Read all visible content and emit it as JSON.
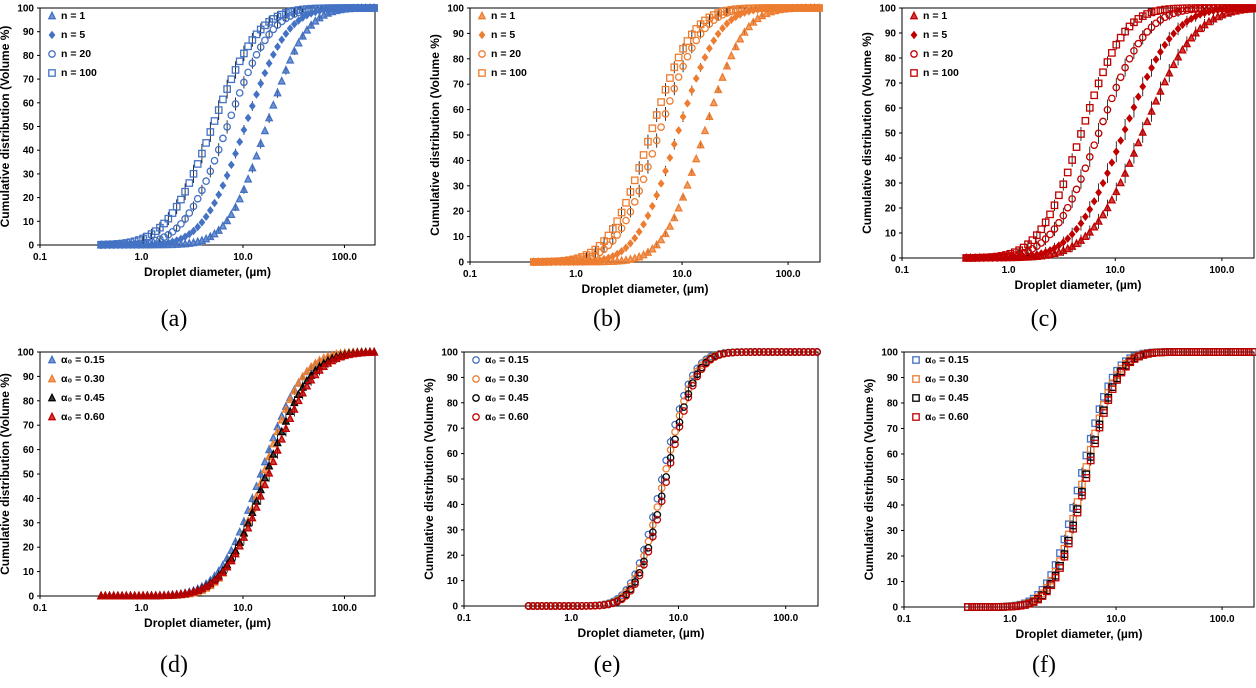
{
  "colors": {
    "blue": "#4472C4",
    "orange": "#ED7D31",
    "red": "#C00000",
    "black": "#000000"
  },
  "chart_data": [
    {
      "type": "scatter",
      "caption": "(a)",
      "xlabel": "Droplet diameter, (µm)",
      "ylabel": "Cumulative distribution (Volume %)",
      "xscale": "log",
      "xlim": [
        0.1,
        200
      ],
      "ylim": [
        0,
        100
      ],
      "legend_position": "top-left",
      "x_ticks": [
        "0.1",
        "1.0",
        "10.0",
        "100.0"
      ],
      "y_ticks": [
        "0",
        "10",
        "20",
        "30",
        "40",
        "50",
        "60",
        "70",
        "80",
        "90",
        "100"
      ],
      "series": [
        {
          "name": "n = 1",
          "marker": "triangle",
          "color": "#4472C4",
          "d50": 17,
          "s": 0.7,
          "err": 1.5
        },
        {
          "name": "n = 5",
          "marker": "diamond",
          "color": "#4472C4",
          "d50": 10.5,
          "s": 0.75,
          "err": 1.5
        },
        {
          "name": "n = 20",
          "marker": "circle",
          "color": "#4472C4",
          "d50": 7,
          "s": 0.78,
          "err": 2
        },
        {
          "name": "n = 100",
          "marker": "square",
          "color": "#4472C4",
          "d50": 5,
          "s": 0.82,
          "err": 3
        }
      ]
    },
    {
      "type": "scatter",
      "caption": "(b)",
      "xlabel": "Droplet diameter, (µm)",
      "ylabel": "Cumulative distribution (Volume %)",
      "xscale": "log",
      "xlim": [
        0.1,
        200
      ],
      "ylim": [
        0,
        100
      ],
      "legend_position": "top-left",
      "x_ticks": [
        "0.1",
        "1.0",
        "10.0",
        "100.0"
      ],
      "y_ticks": [
        "0",
        "10",
        "20",
        "30",
        "40",
        "50",
        "60",
        "70",
        "80",
        "90",
        "100"
      ],
      "series": [
        {
          "name": "n = 1",
          "marker": "triangle",
          "color": "#ED7D31",
          "d50": 16,
          "s": 0.68,
          "err": 1
        },
        {
          "name": "n = 5",
          "marker": "diamond",
          "color": "#ED7D31",
          "d50": 9,
          "s": 0.7,
          "err": 1.5
        },
        {
          "name": "n = 20",
          "marker": "circle",
          "color": "#ED7D31",
          "d50": 6,
          "s": 0.72,
          "err": 2
        },
        {
          "name": "n = 100",
          "marker": "square",
          "color": "#ED7D31",
          "d50": 5,
          "s": 0.72,
          "err": 2
        }
      ]
    },
    {
      "type": "scatter",
      "caption": "(c)",
      "xlabel": "Droplet diameter, (µm)",
      "ylabel": "Cumulative distribution (Volume %)",
      "xscale": "log",
      "xlim": [
        0.1,
        200
      ],
      "ylim": [
        0,
        100
      ],
      "legend_position": "top-left",
      "x_ticks": [
        "0.1",
        "1.0",
        "10.0",
        "100.0"
      ],
      "y_ticks": [
        "0",
        "10",
        "20",
        "30",
        "40",
        "50",
        "60",
        "70",
        "80",
        "90",
        "100"
      ],
      "series": [
        {
          "name": "n = 1",
          "marker": "triangle",
          "color": "#C00000",
          "d50": 18,
          "s": 0.9,
          "err": 3
        },
        {
          "name": "n = 5",
          "marker": "diamond",
          "color": "#C00000",
          "d50": 12,
          "s": 0.85,
          "err": 3
        },
        {
          "name": "n = 20",
          "marker": "circle",
          "color": "#C00000",
          "d50": 7,
          "s": 0.8,
          "err": 3
        },
        {
          "name": "n = 100",
          "marker": "square",
          "color": "#C00000",
          "d50": 4.8,
          "s": 0.72,
          "err": 2
        }
      ]
    },
    {
      "type": "scatter",
      "caption": "(d)",
      "xlabel": "Droplet diameter, (µm)",
      "ylabel": "Cumulative distribution (Volume %)",
      "xscale": "log",
      "xlim": [
        0.1,
        200
      ],
      "ylim": [
        0,
        100
      ],
      "legend_position": "top-left",
      "x_ticks": [
        "0.1",
        "1.0",
        "10.0",
        "100.0"
      ],
      "y_ticks": [
        "0",
        "10",
        "20",
        "30",
        "40",
        "50",
        "60",
        "70",
        "80",
        "90",
        "100"
      ],
      "series": [
        {
          "name": "α₀ = 0.15",
          "marker": "triangle",
          "color": "#4472C4",
          "d50": 15,
          "s": 0.75,
          "err": 1.5
        },
        {
          "name": "α₀ = 0.30",
          "marker": "triangle",
          "color": "#ED7D31",
          "d50": 16,
          "s": 0.7,
          "err": 1.5
        },
        {
          "name": "α₀ = 0.45",
          "marker": "triangle",
          "color": "#000000",
          "d50": 17,
          "s": 0.78,
          "err": 2.5
        },
        {
          "name": "α₀ = 0.60",
          "marker": "triangle",
          "color": "#C00000",
          "d50": 18,
          "s": 0.8,
          "err": 2.5
        }
      ]
    },
    {
      "type": "scatter",
      "caption": "(e)",
      "xlabel": "Droplet diameter, (µm)",
      "ylabel": "Cumulative distribution (Volume %)",
      "xscale": "log",
      "xlim": [
        0.1,
        200
      ],
      "ylim": [
        0,
        100
      ],
      "legend_position": "top-left",
      "x_ticks": [
        "0.1",
        "1.0",
        "10.0",
        "100.0"
      ],
      "y_ticks": [
        "0",
        "10",
        "20",
        "30",
        "40",
        "50",
        "60",
        "70",
        "80",
        "90",
        "100"
      ],
      "series": [
        {
          "name": "α₀ = 0.15",
          "marker": "circle",
          "color": "#4472C4",
          "d50": 7.0,
          "s": 0.5,
          "err": 1.5
        },
        {
          "name": "α₀ = 0.30",
          "marker": "circle",
          "color": "#ED7D31",
          "d50": 7.3,
          "s": 0.5,
          "err": 1.5
        },
        {
          "name": "α₀ = 0.45",
          "marker": "circle",
          "color": "#000000",
          "d50": 7.6,
          "s": 0.5,
          "err": 1.5
        },
        {
          "name": "α₀ = 0.60",
          "marker": "circle",
          "color": "#C00000",
          "d50": 7.8,
          "s": 0.5,
          "err": 1.5
        }
      ]
    },
    {
      "type": "scatter",
      "caption": "(f)",
      "xlabel": "Droplet diameter, (µm)",
      "ylabel": "Cumulative distribution (Volume %)",
      "xscale": "log",
      "xlim": [
        0.1,
        200
      ],
      "ylim": [
        0,
        100
      ],
      "legend_position": "top-left",
      "x_ticks": [
        "0.1",
        "1.0",
        "10.0",
        "100.0"
      ],
      "y_ticks": [
        "0",
        "10",
        "20",
        "30",
        "40",
        "50",
        "60",
        "70",
        "80",
        "90",
        "100"
      ],
      "series": [
        {
          "name": "α₀ = 0.15",
          "marker": "square",
          "color": "#4472C4",
          "d50": 4.6,
          "s": 0.55,
          "err": 1.5
        },
        {
          "name": "α₀ = 0.30",
          "marker": "square",
          "color": "#ED7D31",
          "d50": 4.9,
          "s": 0.55,
          "err": 1.5
        },
        {
          "name": "α₀ = 0.45",
          "marker": "square",
          "color": "#000000",
          "d50": 5.1,
          "s": 0.55,
          "err": 1.5
        },
        {
          "name": "α₀ = 0.60",
          "marker": "square",
          "color": "#C00000",
          "d50": 5.2,
          "s": 0.55,
          "err": 1.5
        }
      ]
    }
  ]
}
